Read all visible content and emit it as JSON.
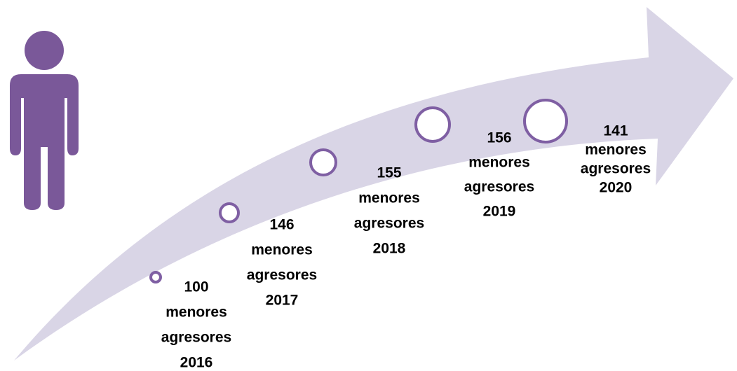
{
  "steps": [
    {
      "lines": [
        "100",
        "menores",
        "agresores",
        "2016"
      ]
    },
    {
      "lines": [
        "146",
        "menores",
        "agresores",
        "2017"
      ]
    },
    {
      "lines": [
        "155",
        "menores",
        "agresores",
        "2018"
      ]
    },
    {
      "lines": [
        "156",
        "menores",
        "agresores",
        "2019"
      ]
    },
    {
      "lines": [
        "141",
        "menores",
        "agresores",
        "2020"
      ]
    }
  ]
}
